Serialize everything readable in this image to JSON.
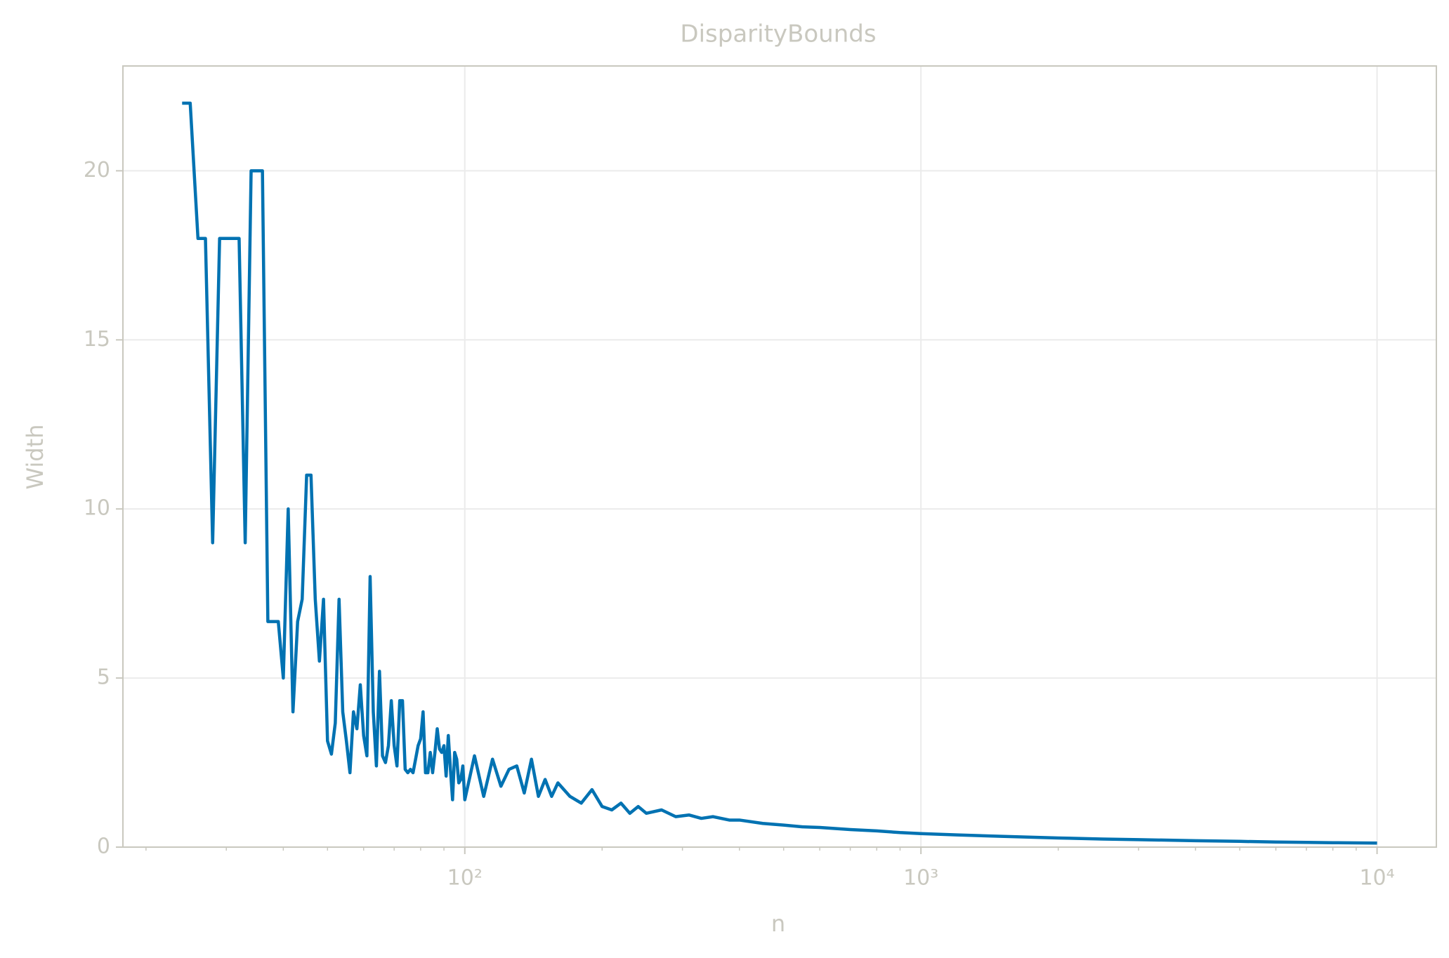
{
  "chart_data": {
    "type": "line",
    "title": "DisparityBounds",
    "x_label": "n",
    "y_label": "Width",
    "x": [
      24,
      25,
      26,
      27,
      28,
      29,
      30,
      31,
      32,
      33,
      34,
      35,
      36,
      37,
      38,
      39,
      40,
      41,
      42,
      43,
      44,
      45,
      46,
      47,
      48,
      49,
      50,
      51,
      52,
      53,
      54,
      55,
      56,
      57,
      58,
      59,
      60,
      61,
      62,
      63,
      64,
      65,
      66,
      67,
      68,
      69,
      70,
      71,
      72,
      73,
      74,
      75,
      76,
      77,
      78,
      79,
      80,
      81,
      82,
      83,
      84,
      85,
      86,
      87,
      88,
      89,
      90,
      91,
      92,
      93,
      94,
      95,
      96,
      97,
      98,
      99,
      100,
      105,
      110,
      115,
      120,
      125,
      130,
      135,
      140,
      145,
      150,
      155,
      160,
      170,
      180,
      190,
      200,
      210,
      220,
      230,
      240,
      250,
      270,
      290,
      310,
      330,
      350,
      380,
      400,
      450,
      500,
      550,
      600,
      700,
      800,
      900,
      1000,
      1200,
      1500,
      2000,
      2500,
      3000,
      4000,
      5000,
      6000,
      7000,
      8000,
      10000
    ],
    "values": [
      22,
      22,
      18,
      18,
      9,
      18,
      18,
      18,
      18,
      9,
      20,
      20,
      20,
      6.67,
      6.67,
      6.67,
      5,
      10,
      4,
      6.67,
      7.33,
      11,
      11,
      7.33,
      5.5,
      7.33,
      3.14,
      2.75,
      3.67,
      7.33,
      4,
      3.14,
      2.2,
      4,
      3.5,
      4.8,
      3.3,
      2.7,
      8,
      4,
      2.4,
      5.2,
      2.7,
      2.5,
      3,
      4.33,
      3,
      2.4,
      4.33,
      4.33,
      2.3,
      2.2,
      2.3,
      2.2,
      2.6,
      3,
      3.2,
      4,
      2.2,
      2.2,
      2.8,
      2.2,
      2.8,
      3.5,
      2.9,
      2.8,
      3,
      2.1,
      3.3,
      2.3,
      1.4,
      2.8,
      2.6,
      1.9,
      2,
      2.4,
      1.4,
      2.7,
      1.5,
      2.6,
      1.8,
      2.3,
      2.4,
      1.6,
      2.6,
      1.5,
      2,
      1.5,
      1.9,
      1.5,
      1.3,
      1.7,
      1.2,
      1.1,
      1.3,
      1,
      1.2,
      1,
      1.1,
      0.9,
      0.95,
      0.85,
      0.9,
      0.8,
      0.8,
      0.7,
      0.65,
      0.6,
      0.58,
      0.52,
      0.48,
      0.43,
      0.4,
      0.36,
      0.32,
      0.27,
      0.24,
      0.22,
      0.19,
      0.17,
      0.15,
      0.14,
      0.13,
      0.12
    ],
    "color": "#0072b2",
    "xscale": "log",
    "xlim": [
      17.8,
      13490
    ],
    "xticks": [
      {
        "value": 100,
        "label": "10²"
      },
      {
        "value": 1000,
        "label": "10³"
      },
      {
        "value": 10000,
        "label": "10⁴"
      }
    ],
    "xminorticks": [
      20,
      30,
      40,
      50,
      60,
      70,
      80,
      90,
      200,
      300,
      400,
      500,
      600,
      700,
      800,
      900,
      2000,
      3000,
      4000,
      5000,
      6000,
      7000,
      8000,
      9000
    ],
    "ylim": [
      0,
      23.1
    ],
    "yticks": [
      0,
      5,
      10,
      15,
      20
    ],
    "grid": true
  }
}
